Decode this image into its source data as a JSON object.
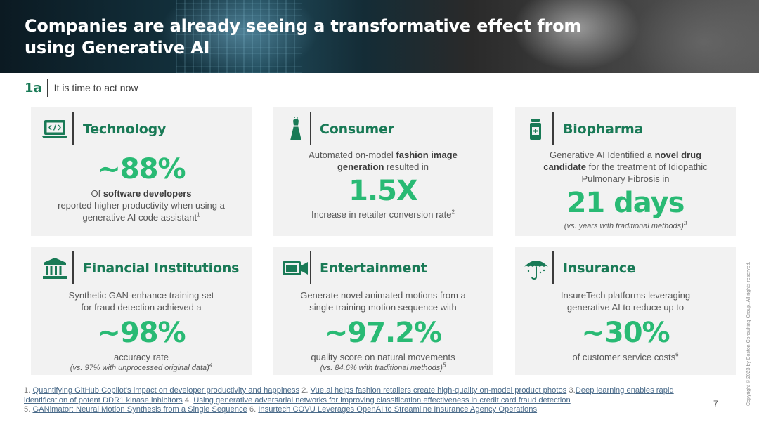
{
  "header": {
    "title": "Companies are already seeing a transformative effect from using Generative AI"
  },
  "section": {
    "number": "1a",
    "title": "It is time to act now"
  },
  "colors": {
    "accent": "#29ba74",
    "title_green": "#197a56",
    "card_bg": "#f2f2f2"
  },
  "cards": {
    "technology": {
      "icon": "laptop-code-icon",
      "title": "Technology",
      "stat": "~88%",
      "line1_pre": "Of ",
      "line1_bold": "software developers",
      "line2": "reported higher productivity when using a generative AI code assistant",
      "ref": "1"
    },
    "consumer": {
      "icon": "dress-icon",
      "title": "Consumer",
      "desc_pre": "Automated on-model ",
      "desc_bold": "fashion image generation",
      "desc_post": " resulted in",
      "stat": "1.5X",
      "below": "Increase in retailer conversion rate",
      "ref": "2"
    },
    "biopharma": {
      "icon": "medicine-bottle-icon",
      "title": "Biopharma",
      "desc_pre": "Generative AI Identified a ",
      "desc_bold": "novel drug candidate",
      "desc_post": " for the treatment of Idiopathic Pulmonary Fibrosis in",
      "stat": "21 days",
      "note": "(vs. years with traditional methods)",
      "ref": "3"
    },
    "financial": {
      "icon": "bank-icon",
      "title": "Financial Institutions",
      "desc": "Synthetic GAN-enhance training set for fraud detection achieved a",
      "stat": "~98%",
      "below": "accuracy rate",
      "note": "(vs. 97% with unprocessed original data)",
      "ref": "4"
    },
    "entertainment": {
      "icon": "video-camera-icon",
      "title": "Entertainment",
      "desc": "Generate novel animated motions from a single training motion sequence with",
      "stat": "~97.2%",
      "below": "quality score on natural movements",
      "note": "(vs. 84.6% with traditional methods)",
      "ref": "5"
    },
    "insurance": {
      "icon": "umbrella-icon",
      "title": "Insurance",
      "desc": "InsureTech platforms leveraging generative AI to reduce up to",
      "stat": "~30%",
      "below": "of customer service costs",
      "ref": "6"
    }
  },
  "footnotes": {
    "n1": "1. ",
    "l1": "Quantifying GitHub Copilot's impact on developer productivity and happiness",
    "n2": "  2. ",
    "l2": "Vue.ai helps fashion retailers create high-quality on-model product photos",
    "n3": " 3.",
    "l3": "Deep learning enables rapid identification of potent DDR1 kinase inhibitors",
    "n4": "  4. ",
    "l4": "Using generative adversarial networks for improving classification effectiveness in credit card fraud detection",
    "n5": " 5. ",
    "l5": "GANimator: Neural Motion Synthesis from a Single Sequence",
    "n6": "  6. ",
    "l6": "Insurtech COVU Leverages OpenAI to Streamline Insurance Agency Operations"
  },
  "page_number": "7",
  "copyright": "Copyright © 2023 by Boston Consulting Group. All rights reserved."
}
